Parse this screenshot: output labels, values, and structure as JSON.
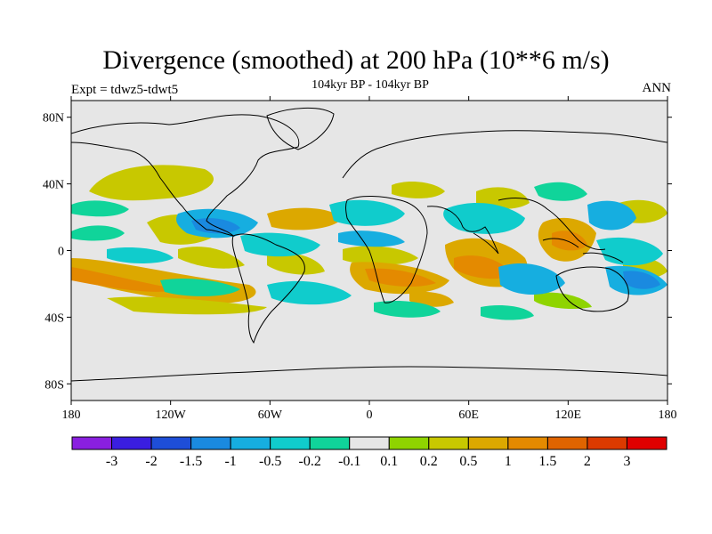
{
  "header": {
    "title": "Divergence (smoothed) at 200 hPa (10**6 m/s)",
    "subtitle": "104kyr BP - 104kyr BP",
    "experiment": "Expt = tdwz5-tdwt5",
    "season": "ANN"
  },
  "axes": {
    "lat_ticks": [
      {
        "label": "80N",
        "value": 80
      },
      {
        "label": "40N",
        "value": 40
      },
      {
        "label": "0",
        "value": 0
      },
      {
        "label": "40S",
        "value": -40
      },
      {
        "label": "80S",
        "value": -80
      }
    ],
    "lon_ticks": [
      {
        "label": "180",
        "value": -180
      },
      {
        "label": "120W",
        "value": -120
      },
      {
        "label": "60W",
        "value": -60
      },
      {
        "label": "0",
        "value": 0
      },
      {
        "label": "60E",
        "value": 60
      },
      {
        "label": "120E",
        "value": 120
      },
      {
        "label": "180",
        "value": 180
      }
    ],
    "lat_range": [
      -90,
      90
    ],
    "lon_range": [
      -180,
      180
    ]
  },
  "colorbar": {
    "colors": [
      "#8a1fe0",
      "#3a1ee0",
      "#1e4ed8",
      "#1a8ae0",
      "#16aee0",
      "#10cccc",
      "#10d49a",
      "#e6e6e6",
      "#8fd400",
      "#c8c800",
      "#dca800",
      "#e48a00",
      "#e06400",
      "#dc3a00",
      "#e00000"
    ],
    "labels": [
      "-3",
      "-2",
      "-1.5",
      "-1",
      "-0.5",
      "-0.2",
      "-0.1",
      "0.1",
      "0.2",
      "0.5",
      "1",
      "1.5",
      "2",
      "3"
    ]
  },
  "map": {
    "background": "#e6e6e6",
    "coastline_color": "#000000"
  }
}
